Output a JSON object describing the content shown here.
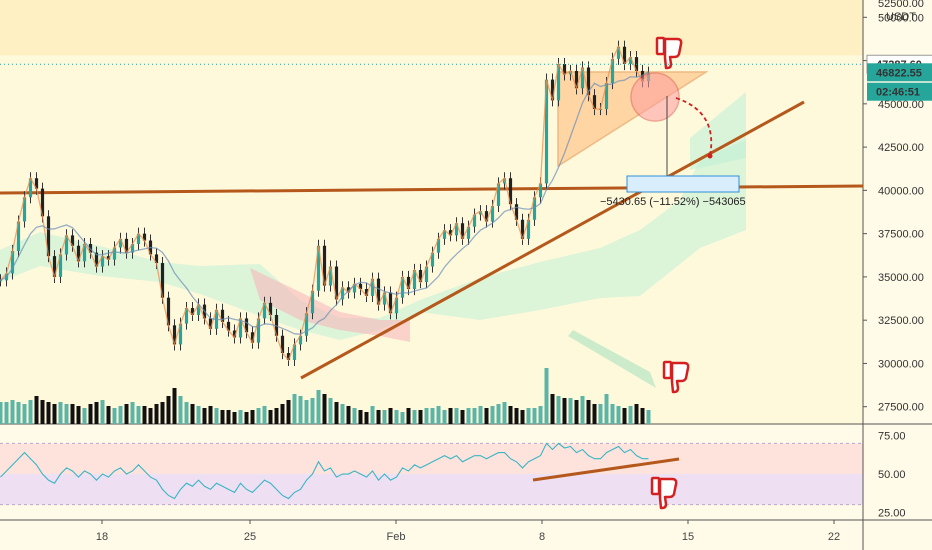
{
  "chart_data": [
    {
      "type": "line",
      "panel": "price",
      "title": "",
      "currency": "USDT",
      "ylim": [
        26500,
        51000
      ],
      "y_ticks": [
        "27500.00",
        "30000.00",
        "32500.00",
        "35000.00",
        "37500.00",
        "40000.00",
        "42500.00",
        "45000.00",
        "47500.00",
        "50000.00"
      ],
      "y_top_partial": "52500.00",
      "x_ticks": [
        "18",
        "25",
        "Feb",
        "8",
        "15",
        "22"
      ],
      "price_labels": [
        {
          "label": "47287.60",
          "value": 47287.6,
          "bg": "#ffffff",
          "fg": "#222222"
        },
        {
          "label": "46822.55",
          "value": 46822.55,
          "bg": "#26a69a",
          "fg": "#ffffff"
        },
        {
          "label": "02:46:51",
          "value": 45700,
          "bg": "#26a69a",
          "fg": "#ffffff"
        }
      ],
      "annotation": "−5430.65 (−11.52%) −543065",
      "series": [
        {
          "values": [
            34800,
            35200,
            36500,
            38200,
            39600,
            40700,
            40100,
            38500,
            36200,
            35000,
            36300,
            37400,
            36800,
            35900,
            36900,
            36400,
            35600,
            36200,
            36000,
            36700,
            37200,
            36400,
            36900,
            37500,
            37100,
            36300,
            35800,
            33800,
            32200,
            31100,
            32300,
            33200,
            32800,
            33400,
            32600,
            32000,
            33100,
            32400,
            31900,
            31500,
            32600,
            31800,
            31200,
            32600,
            33500,
            32800,
            31600,
            30600,
            30200,
            31100,
            31600,
            32900,
            34200,
            36800,
            34500,
            35600,
            33700,
            34400,
            34100,
            34600,
            34300,
            33900,
            34900,
            33400,
            34100,
            32900,
            33800,
            35000,
            34300,
            35400,
            34700,
            35600,
            36400,
            37200,
            37700,
            37400,
            38100,
            37200,
            37900,
            38600,
            38800,
            38200,
            39100,
            40400,
            40700,
            39200,
            38300,
            37200,
            38300,
            39600,
            40400,
            46400,
            45200,
            47300,
            46700,
            46900,
            45900,
            47100,
            45500,
            44700,
            44700,
            46200,
            47600,
            48300,
            47300,
            47700,
            46900,
            46300,
            46800
          ]
        }
      ],
      "volumes": [
        22,
        22,
        24,
        22,
        20,
        24,
        28,
        24,
        22,
        20,
        22,
        20,
        20,
        18,
        16,
        20,
        22,
        24,
        18,
        16,
        18,
        20,
        22,
        18,
        18,
        16,
        20,
        22,
        28,
        36,
        28,
        22,
        20,
        18,
        16,
        18,
        16,
        14,
        14,
        12,
        14,
        12,
        14,
        16,
        18,
        14,
        16,
        20,
        24,
        30,
        28,
        24,
        26,
        34,
        30,
        26,
        22,
        20,
        18,
        16,
        14,
        12,
        18,
        14,
        14,
        16,
        14,
        12,
        16,
        14,
        14,
        16,
        16,
        18,
        14,
        16,
        16,
        14,
        16,
        16,
        18,
        16,
        18,
        20,
        22,
        18,
        16,
        14,
        16,
        16,
        18,
        56,
        30,
        28,
        26,
        26,
        24,
        28,
        24,
        20,
        20,
        30,
        20,
        18,
        16,
        18,
        20,
        16,
        14
      ]
    },
    {
      "type": "line",
      "panel": "rsi",
      "ylim": [
        20,
        82
      ],
      "y_ticks": [
        "25.00",
        "50.00",
        "75.00"
      ],
      "bands": [
        30,
        70
      ],
      "series": [
        {
          "values": [
            48,
            52,
            56,
            60,
            64,
            60,
            56,
            50,
            46,
            44,
            50,
            54,
            52,
            48,
            52,
            50,
            46,
            50,
            48,
            52,
            54,
            50,
            52,
            56,
            52,
            48,
            46,
            40,
            36,
            34,
            40,
            44,
            42,
            46,
            42,
            40,
            44,
            42,
            40,
            38,
            44,
            40,
            38,
            42,
            46,
            44,
            40,
            36,
            34,
            38,
            40,
            46,
            50,
            58,
            52,
            54,
            48,
            50,
            50,
            52,
            50,
            48,
            52,
            46,
            50,
            46,
            48,
            54,
            52,
            56,
            54,
            56,
            58,
            60,
            62,
            60,
            62,
            58,
            60,
            62,
            62,
            60,
            62,
            64,
            64,
            60,
            58,
            54,
            58,
            60,
            62,
            70,
            66,
            70,
            67,
            68,
            64,
            66,
            62,
            60,
            60,
            64,
            66,
            68,
            64,
            66,
            62,
            60,
            60
          ]
        }
      ]
    }
  ]
}
